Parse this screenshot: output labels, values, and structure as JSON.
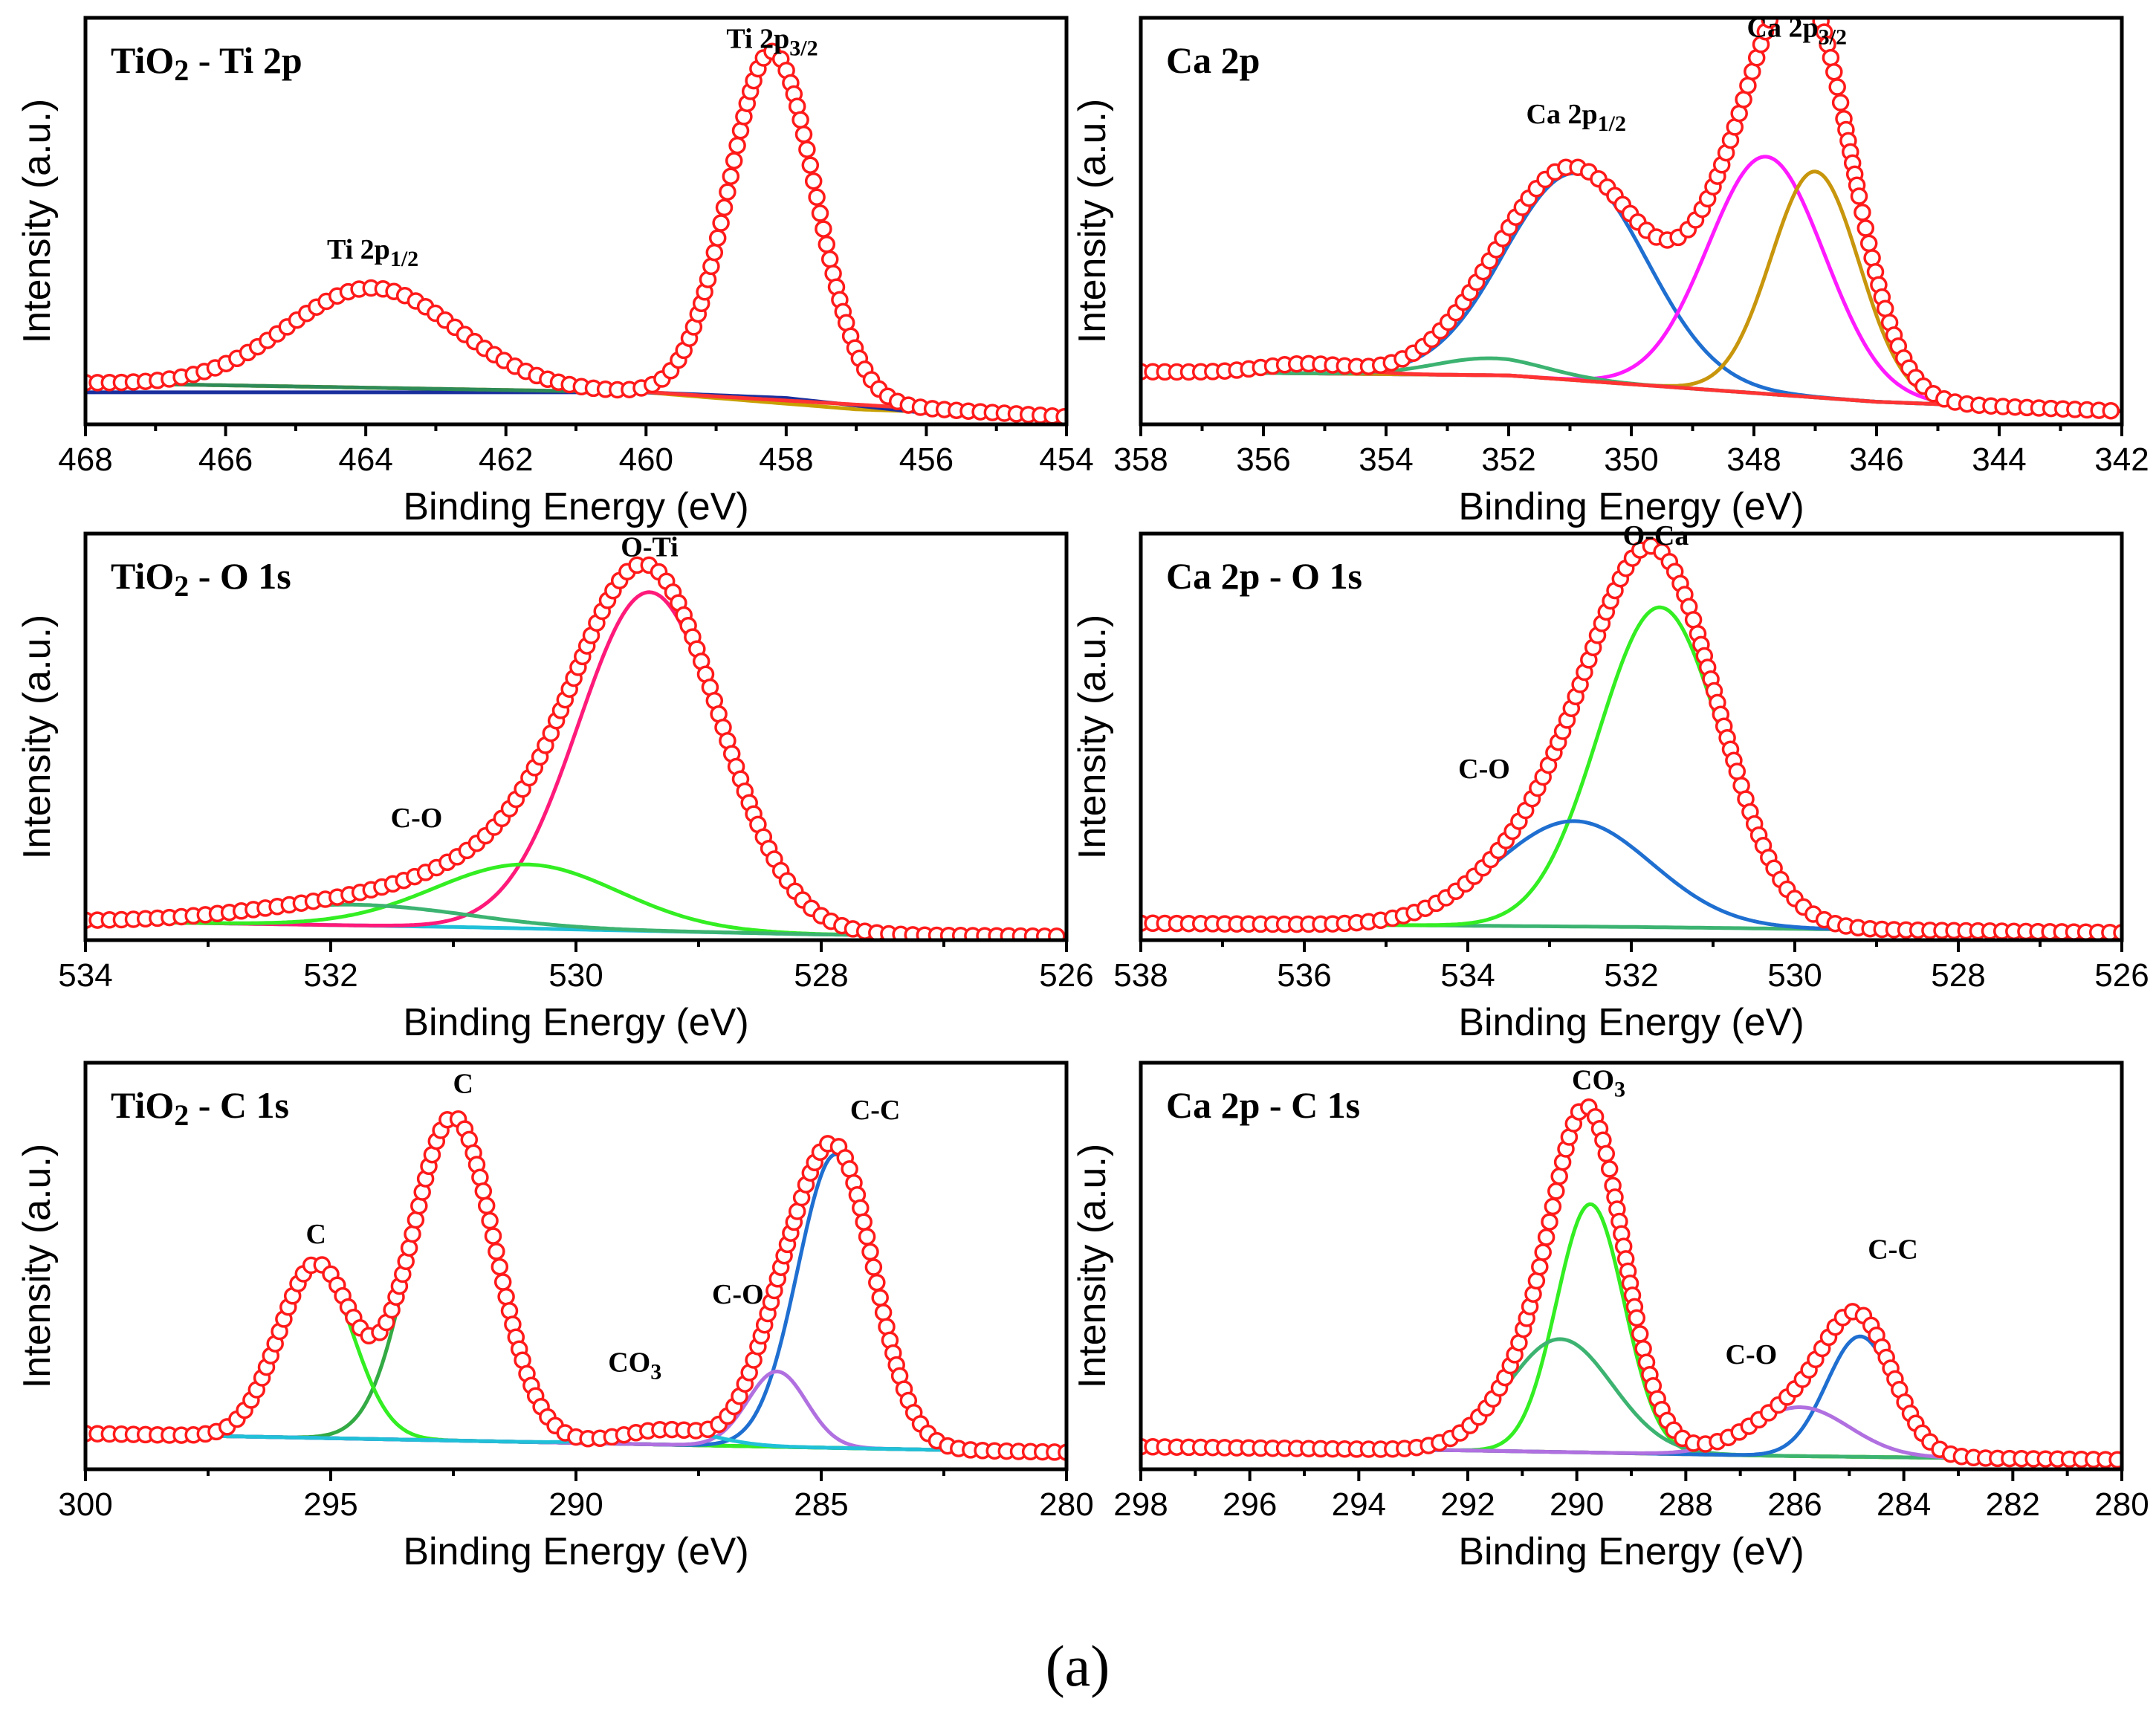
{
  "figure": {
    "caption": "(a)"
  },
  "chart_data": [
    {
      "type": "line",
      "title": "TiO2 - Ti 2p",
      "xlabel": "Binding Energy (eV)",
      "ylabel": "Intensity (a.u.)",
      "xlim": [
        468,
        454
      ],
      "xticks": [
        468,
        466,
        464,
        462,
        460,
        458,
        456,
        454
      ],
      "ylim": [
        0,
        1.08
      ],
      "baseline": [
        {
          "x": 468,
          "y": 0.11
        },
        {
          "x": 460,
          "y": 0.085
        },
        {
          "x": 454,
          "y": 0.02
        }
      ],
      "components": [
        {
          "name": "Ti 2p3/2",
          "center": 458.2,
          "width": 0.62,
          "amp": 0.925,
          "color": "#2e8b57"
        },
        {
          "name": "Ti 2p1/2",
          "center": 463.9,
          "width": 1.2,
          "amp": 0.265,
          "color": "#ff3333"
        }
      ],
      "background_lines": [
        {
          "color": "#c8a000",
          "points": [
            {
              "x": 468,
              "y": 0.11
            },
            {
              "x": 460,
              "y": 0.085
            },
            {
              "x": 457,
              "y": 0.04
            },
            {
              "x": 454,
              "y": 0.02
            }
          ]
        },
        {
          "color": "#1a2f9e",
          "points": [
            {
              "x": 460,
              "y": 0.085
            },
            {
              "x": 458,
              "y": 0.07
            },
            {
              "x": 456,
              "y": 0.03
            },
            {
              "x": 454,
              "y": 0.02
            }
          ]
        }
      ],
      "labels": [
        {
          "text": "Ti 2p",
          "sub": "3/2",
          "x": 458.2,
          "y": 1.0
        },
        {
          "text": "Ti 2p",
          "sub": "1/2",
          "x": 463.9,
          "y": 0.44
        }
      ]
    },
    {
      "type": "line",
      "title": "Ca 2p",
      "xlabel": "Binding Energy (eV)",
      "ylabel": "Intensity (a.u.)",
      "xlim": [
        358,
        342
      ],
      "xticks": [
        358,
        356,
        354,
        352,
        350,
        348,
        346,
        344,
        342
      ],
      "ylim": [
        0,
        1.08
      ],
      "baseline": [
        {
          "x": 358,
          "y": 0.14
        },
        {
          "x": 352,
          "y": 0.13
        },
        {
          "x": 346,
          "y": 0.06
        },
        {
          "x": 342,
          "y": 0.035
        }
      ],
      "components": [
        {
          "name": "Ca 2p1/2",
          "center": 350.9,
          "width": 1.15,
          "amp": 0.55,
          "color": "#1f6fd1"
        },
        {
          "name": "Ca 2p3/2 (a)",
          "center": 347.8,
          "width": 0.95,
          "amp": 0.63,
          "color": "#ff1aff"
        },
        {
          "name": "Ca 2p3/2 (b)",
          "center": 347.0,
          "width": 0.72,
          "amp": 0.6,
          "color": "#c8960c"
        },
        {
          "name": "satellite",
          "center": 352.3,
          "width": 0.9,
          "amp": 0.045,
          "color": "#3cb371"
        },
        {
          "name": "satellite 2",
          "center": 355.3,
          "width": 0.7,
          "amp": 0.025,
          "color": "#ff3333"
        }
      ],
      "background_lines": [
        {
          "color": "#20c0d8",
          "points": [
            {
              "x": 358,
              "y": 0.14
            },
            {
              "x": 352,
              "y": 0.13
            },
            {
              "x": 346,
              "y": 0.06
            },
            {
              "x": 342,
              "y": 0.035
            }
          ]
        }
      ],
      "labels": [
        {
          "text": "Ca 2p",
          "sub": "1/2",
          "x": 350.9,
          "y": 0.8
        },
        {
          "text": "Ca 2p",
          "sub": "3/2",
          "x": 347.3,
          "y": 1.03
        }
      ]
    },
    {
      "type": "line",
      "title": "TiO2 - O 1s",
      "xlabel": "Binding Energy (eV)",
      "ylabel": "Intensity (a.u.)",
      "xlim": [
        534,
        526
      ],
      "xticks": [
        534,
        532,
        530,
        528,
        526
      ],
      "ylim": [
        0,
        1.08
      ],
      "baseline": [
        {
          "x": 534,
          "y": 0.05
        },
        {
          "x": 531,
          "y": 0.035
        },
        {
          "x": 528,
          "y": 0.015
        },
        {
          "x": 526,
          "y": 0.01
        }
      ],
      "components": [
        {
          "name": "O-Ti",
          "center": 529.4,
          "width": 0.58,
          "amp": 0.9,
          "color": "#ff1a7a"
        },
        {
          "name": "C-O",
          "center": 530.4,
          "width": 0.75,
          "amp": 0.17,
          "color": "#33ee22"
        },
        {
          "name": "C-O tail",
          "center": 531.8,
          "width": 0.9,
          "amp": 0.055,
          "color": "#3cb371"
        }
      ],
      "background_lines": [
        {
          "color": "#20c0d8",
          "points": [
            {
              "x": 534,
              "y": 0.05
            },
            {
              "x": 531,
              "y": 0.035
            },
            {
              "x": 528,
              "y": 0.015
            },
            {
              "x": 526,
              "y": 0.01
            }
          ]
        }
      ],
      "labels": [
        {
          "text": "O-Ti",
          "sub": "",
          "x": 529.4,
          "y": 1.02
        },
        {
          "text": "C-O",
          "sub": "",
          "x": 531.3,
          "y": 0.3
        }
      ]
    },
    {
      "type": "line",
      "title": "Ca 2p - O 1s",
      "xlabel": "Binding Energy (eV)",
      "ylabel": "Intensity (a.u.)",
      "xlim": [
        538,
        526
      ],
      "xticks": [
        538,
        536,
        534,
        532,
        530,
        528,
        526
      ],
      "ylim": [
        0,
        1.08
      ],
      "baseline": [
        {
          "x": 538,
          "y": 0.045
        },
        {
          "x": 532,
          "y": 0.035
        },
        {
          "x": 526,
          "y": 0.02
        }
      ],
      "components": [
        {
          "name": "O-Ca",
          "center": 531.65,
          "width": 0.75,
          "amp": 0.85,
          "color": "#33ee22"
        },
        {
          "name": "C-O",
          "center": 532.7,
          "width": 0.95,
          "amp": 0.28,
          "color": "#1f6fd1"
        }
      ],
      "background_lines": [
        {
          "color": "#3cb371",
          "points": [
            {
              "x": 538,
              "y": 0.045
            },
            {
              "x": 532,
              "y": 0.035
            },
            {
              "x": 526,
              "y": 0.02
            }
          ]
        }
      ],
      "labels": [
        {
          "text": "O-Ca",
          "sub": "",
          "x": 531.7,
          "y": 1.05
        },
        {
          "text": "C-O",
          "sub": "",
          "x": 533.8,
          "y": 0.43
        }
      ]
    },
    {
      "type": "line",
      "title": "TiO2 - C 1s",
      "xlabel": "Binding Energy (eV)",
      "ylabel": "Intensity (a.u.)",
      "xlim": [
        300,
        280
      ],
      "xticks": [
        300,
        295,
        290,
        285,
        280
      ],
      "ylim": [
        0,
        1.08
      ],
      "baseline": [
        {
          "x": 300,
          "y": 0.095
        },
        {
          "x": 292,
          "y": 0.075
        },
        {
          "x": 286,
          "y": 0.06
        },
        {
          "x": 280,
          "y": 0.045
        }
      ],
      "components": [
        {
          "name": "C (292.5)",
          "center": 292.5,
          "width": 0.85,
          "amp": 0.86,
          "color": "#33aa44"
        },
        {
          "name": "C (295.3)",
          "center": 295.3,
          "width": 0.75,
          "amp": 0.46,
          "color": "#33ee22"
        },
        {
          "name": "C-C",
          "center": 284.7,
          "width": 0.78,
          "amp": 0.78,
          "color": "#1f6fd1"
        },
        {
          "name": "C-O",
          "center": 285.9,
          "width": 0.6,
          "amp": 0.2,
          "color": "#b070e0"
        },
        {
          "name": "CO3",
          "center": 288.1,
          "width": 0.9,
          "amp": 0.04,
          "color": "#20c0d8"
        }
      ],
      "background_lines": [
        {
          "color": "#8b3a3a",
          "points": [
            {
              "x": 300,
              "y": 0.095
            },
            {
              "x": 292,
              "y": 0.075
            },
            {
              "x": 286,
              "y": 0.06
            },
            {
              "x": 280,
              "y": 0.045
            }
          ]
        }
      ],
      "labels": [
        {
          "text": "C",
          "sub": "",
          "x": 292.3,
          "y": 1.0
        },
        {
          "text": "C",
          "sub": "",
          "x": 295.3,
          "y": 0.6
        },
        {
          "text": "C-C",
          "sub": "",
          "x": 283.9,
          "y": 0.93
        },
        {
          "text": "C-O",
          "sub": "",
          "x": 286.7,
          "y": 0.44
        },
        {
          "text": "CO",
          "sub": "3",
          "x": 288.8,
          "y": 0.26
        }
      ]
    },
    {
      "type": "line",
      "title": "Ca 2p - C 1s",
      "xlabel": "Binding Energy (eV)",
      "ylabel": "Intensity (a.u.)",
      "xlim": [
        298,
        280
      ],
      "xticks": [
        298,
        296,
        294,
        292,
        290,
        288,
        286,
        284,
        282,
        280
      ],
      "ylim": [
        0,
        1.08
      ],
      "baseline": [
        {
          "x": 298,
          "y": 0.06
        },
        {
          "x": 292,
          "y": 0.05
        },
        {
          "x": 286,
          "y": 0.035
        },
        {
          "x": 280,
          "y": 0.025
        }
      ],
      "components": [
        {
          "name": "CO3",
          "center": 289.75,
          "width": 0.62,
          "amp": 0.66,
          "color": "#33ee22"
        },
        {
          "name": "CO3 broad",
          "center": 290.3,
          "width": 0.95,
          "amp": 0.3,
          "color": "#3cb371"
        },
        {
          "name": "C-C",
          "center": 284.8,
          "width": 0.62,
          "amp": 0.32,
          "color": "#1f6fd1"
        },
        {
          "name": "C-O",
          "center": 285.9,
          "width": 0.9,
          "amp": 0.13,
          "color": "#b070e0"
        }
      ],
      "background_lines": [
        {
          "color": "#c8a000",
          "points": [
            {
              "x": 298,
              "y": 0.06
            },
            {
              "x": 292,
              "y": 0.05
            },
            {
              "x": 286,
              "y": 0.035
            },
            {
              "x": 280,
              "y": 0.025
            }
          ]
        }
      ],
      "labels": [
        {
          "text": "CO",
          "sub": "3",
          "x": 289.6,
          "y": 1.01
        },
        {
          "text": "C-C",
          "sub": "",
          "x": 284.2,
          "y": 0.56
        },
        {
          "text": "C-O",
          "sub": "",
          "x": 286.8,
          "y": 0.28
        }
      ]
    }
  ]
}
